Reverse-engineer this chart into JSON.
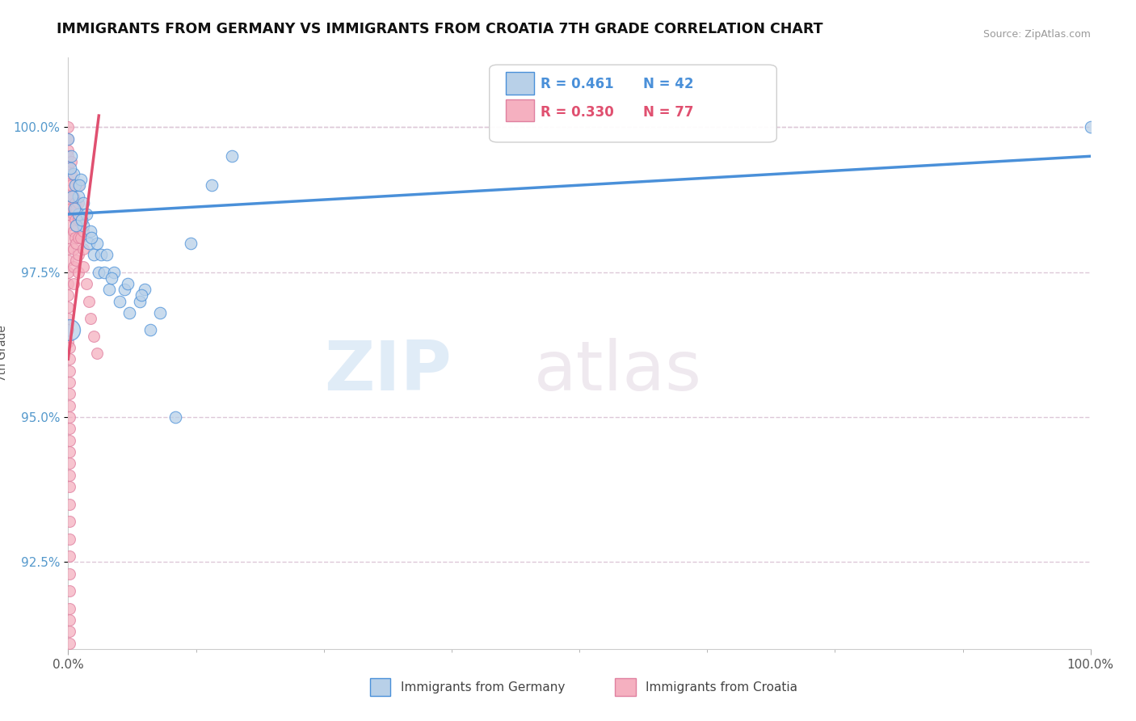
{
  "title": "IMMIGRANTS FROM GERMANY VS IMMIGRANTS FROM CROATIA 7TH GRADE CORRELATION CHART",
  "source": "Source: ZipAtlas.com",
  "xlabel_bottom": "Immigrants from Germany",
  "xlabel_bottom2": "Immigrants from Croatia",
  "ylabel": "7th Grade",
  "xlim": [
    0,
    100
  ],
  "ylim": [
    91.0,
    101.2
  ],
  "yticks": [
    92.5,
    95.0,
    97.5,
    100.0
  ],
  "ytick_labels": [
    "92.5%",
    "95.0%",
    "97.5%",
    "100.0%"
  ],
  "xtick_labels": [
    "0.0%",
    "100.0%"
  ],
  "legend_r_germany": "R = 0.461",
  "legend_n_germany": "N = 42",
  "legend_r_croatia": "R = 0.330",
  "legend_n_croatia": "N = 77",
  "germany_color": "#b8d0e8",
  "croatia_color": "#f5b0c0",
  "trendline_germany_color": "#4a90d9",
  "trendline_croatia_color": "#e05070",
  "germany_marker_size": 110,
  "croatia_marker_size": 100,
  "watermark_zip": "ZIP",
  "watermark_atlas": "atlas",
  "grid_color": "#ddc8d8",
  "grid_style": "--",
  "germany_x": [
    0.0,
    0.3,
    0.5,
    0.7,
    1.0,
    1.0,
    1.2,
    1.5,
    1.5,
    1.8,
    2.0,
    2.2,
    2.5,
    2.8,
    3.0,
    3.2,
    3.5,
    4.0,
    4.5,
    5.0,
    5.5,
    6.0,
    7.0,
    7.5,
    8.0,
    9.0,
    10.5,
    12.0,
    14.0,
    16.0,
    0.2,
    0.4,
    0.6,
    0.8,
    1.1,
    1.3,
    2.3,
    3.8,
    4.2,
    5.8,
    7.2,
    100.0
  ],
  "germany_y": [
    99.8,
    99.5,
    99.2,
    99.0,
    98.8,
    98.5,
    99.1,
    98.7,
    98.3,
    98.5,
    98.0,
    98.2,
    97.8,
    98.0,
    97.5,
    97.8,
    97.5,
    97.2,
    97.5,
    97.0,
    97.2,
    96.8,
    97.0,
    97.2,
    96.5,
    96.8,
    95.0,
    98.0,
    99.0,
    99.5,
    99.3,
    98.8,
    98.6,
    98.3,
    99.0,
    98.4,
    98.1,
    97.8,
    97.4,
    97.3,
    97.1,
    100.0
  ],
  "germany_x_large": [
    0.1
  ],
  "germany_y_large": [
    96.5
  ],
  "germany_large_size": 350,
  "croatia_x": [
    0.0,
    0.0,
    0.0,
    0.0,
    0.0,
    0.0,
    0.0,
    0.0,
    0.0,
    0.0,
    0.0,
    0.0,
    0.0,
    0.0,
    0.0,
    0.0,
    0.0,
    0.0,
    0.0,
    0.0,
    0.3,
    0.3,
    0.3,
    0.3,
    0.3,
    0.5,
    0.5,
    0.5,
    0.5,
    0.5,
    0.5,
    0.7,
    0.7,
    0.7,
    0.8,
    0.8,
    0.8,
    0.8,
    1.0,
    1.0,
    1.0,
    1.0,
    1.0,
    1.0,
    1.2,
    1.2,
    1.5,
    1.5,
    1.5,
    1.8,
    2.0,
    2.2,
    2.5,
    2.8,
    0.1,
    0.1,
    0.1,
    0.1,
    0.1,
    0.1,
    0.1,
    0.1,
    0.1,
    0.1,
    0.1,
    0.1,
    0.1,
    0.1,
    0.1,
    0.1,
    0.1,
    0.1,
    0.1,
    0.1,
    0.1,
    0.1,
    0.1
  ],
  "croatia_y": [
    100.0,
    99.8,
    99.6,
    99.5,
    99.3,
    99.1,
    98.9,
    98.7,
    98.5,
    98.3,
    98.1,
    97.9,
    97.7,
    97.5,
    97.3,
    97.1,
    96.9,
    96.7,
    96.5,
    96.3,
    99.4,
    99.2,
    99.0,
    98.8,
    98.6,
    98.8,
    98.5,
    98.2,
    97.9,
    97.6,
    97.3,
    98.7,
    98.4,
    98.1,
    98.6,
    98.3,
    98.0,
    97.7,
    99.0,
    98.7,
    98.4,
    98.1,
    97.8,
    97.5,
    98.4,
    98.1,
    98.2,
    97.9,
    97.6,
    97.3,
    97.0,
    96.7,
    96.4,
    96.1,
    96.2,
    96.0,
    95.8,
    95.6,
    95.4,
    95.2,
    95.0,
    94.8,
    94.6,
    94.4,
    94.2,
    94.0,
    93.8,
    93.5,
    93.2,
    92.9,
    92.6,
    92.3,
    92.0,
    91.7,
    91.5,
    91.3,
    91.1
  ],
  "trendline_germany_x0": 0.0,
  "trendline_germany_x1": 100.0,
  "trendline_germany_y0": 98.5,
  "trendline_germany_y1": 99.5,
  "trendline_croatia_x0": 0.0,
  "trendline_croatia_x1": 3.0,
  "trendline_croatia_y0": 96.0,
  "trendline_croatia_y1": 100.2
}
